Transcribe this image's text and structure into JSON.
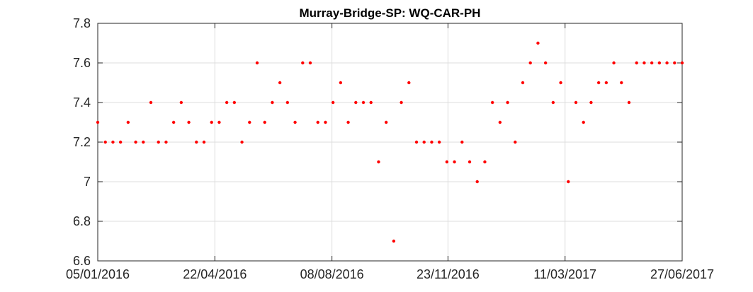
{
  "chart_data": {
    "type": "scatter",
    "title": "Murray-Bridge-SP: WQ-CAR-PH",
    "xlabel": "",
    "ylabel": "",
    "x_type": "date",
    "xlim": [
      "2016-01-05",
      "2017-06-27"
    ],
    "ylim": [
      6.6,
      7.8
    ],
    "x_ticks": [
      "2016-01-05",
      "2016-04-22",
      "2016-08-08",
      "2016-11-23",
      "2017-03-11",
      "2017-06-27"
    ],
    "x_tick_labels": [
      "05/01/2016",
      "22/04/2016",
      "08/08/2016",
      "23/11/2016",
      "11/03/2017",
      "27/06/2017"
    ],
    "y_ticks": [
      6.6,
      6.8,
      7.0,
      7.2,
      7.4,
      7.6,
      7.8
    ],
    "y_tick_labels": [
      "6.6",
      "6.8",
      "7",
      "7.2",
      "7.4",
      "7.6",
      "7.8"
    ],
    "grid": true,
    "marker_color": "#ff0000",
    "series": [
      {
        "x": [
          "2016-01-05",
          "2016-01-12",
          "2016-01-19",
          "2016-01-26",
          "2016-02-02",
          "2016-02-09",
          "2016-02-16",
          "2016-02-23",
          "2016-03-01",
          "2016-03-08",
          "2016-03-15",
          "2016-03-22",
          "2016-03-29",
          "2016-04-05",
          "2016-04-12",
          "2016-04-19",
          "2016-04-26",
          "2016-05-03",
          "2016-05-10",
          "2016-05-17",
          "2016-05-24",
          "2016-05-31",
          "2016-06-07",
          "2016-06-14",
          "2016-06-21",
          "2016-06-28",
          "2016-07-05",
          "2016-07-12",
          "2016-07-19",
          "2016-07-26",
          "2016-08-02",
          "2016-08-09",
          "2016-08-16",
          "2016-08-23",
          "2016-08-30",
          "2016-09-06",
          "2016-09-13",
          "2016-09-20",
          "2016-09-27",
          "2016-10-04",
          "2016-10-11",
          "2016-10-18",
          "2016-10-25",
          "2016-11-01",
          "2016-11-08",
          "2016-11-15",
          "2016-11-22",
          "2016-11-29",
          "2016-12-06",
          "2016-12-13",
          "2016-12-20",
          "2016-12-27",
          "2017-01-03",
          "2017-01-10",
          "2017-01-17",
          "2017-01-24",
          "2017-01-31",
          "2017-02-07",
          "2017-02-14",
          "2017-02-21",
          "2017-02-28",
          "2017-03-07",
          "2017-03-14",
          "2017-03-21",
          "2017-03-28",
          "2017-04-04",
          "2017-04-11",
          "2017-04-18",
          "2017-04-25",
          "2017-05-02",
          "2017-05-09",
          "2017-05-16",
          "2017-05-23",
          "2017-05-30",
          "2017-06-06",
          "2017-06-13",
          "2017-06-20",
          "2017-06-27"
        ],
        "y": [
          7.3,
          7.2,
          7.2,
          7.2,
          7.3,
          7.2,
          7.2,
          7.4,
          7.2,
          7.2,
          7.3,
          7.4,
          7.3,
          7.2,
          7.2,
          7.3,
          7.3,
          7.4,
          7.4,
          7.2,
          7.3,
          7.6,
          7.3,
          7.4,
          7.5,
          7.4,
          7.3,
          7.6,
          7.6,
          7.3,
          7.3,
          7.4,
          7.5,
          7.3,
          7.4,
          7.4,
          7.4,
          7.1,
          7.3,
          6.7,
          7.4,
          7.5,
          7.2,
          7.2,
          7.2,
          7.2,
          7.1,
          7.1,
          7.2,
          7.1,
          7.0,
          7.1,
          7.4,
          7.3,
          7.4,
          7.2,
          7.5,
          7.6,
          7.7,
          7.6,
          7.4,
          7.5,
          7.0,
          7.4,
          7.3,
          7.4,
          7.5,
          7.5,
          7.6,
          7.5,
          7.4,
          7.6,
          7.6,
          7.6,
          7.6,
          7.6,
          7.6,
          7.6
        ]
      }
    ]
  }
}
